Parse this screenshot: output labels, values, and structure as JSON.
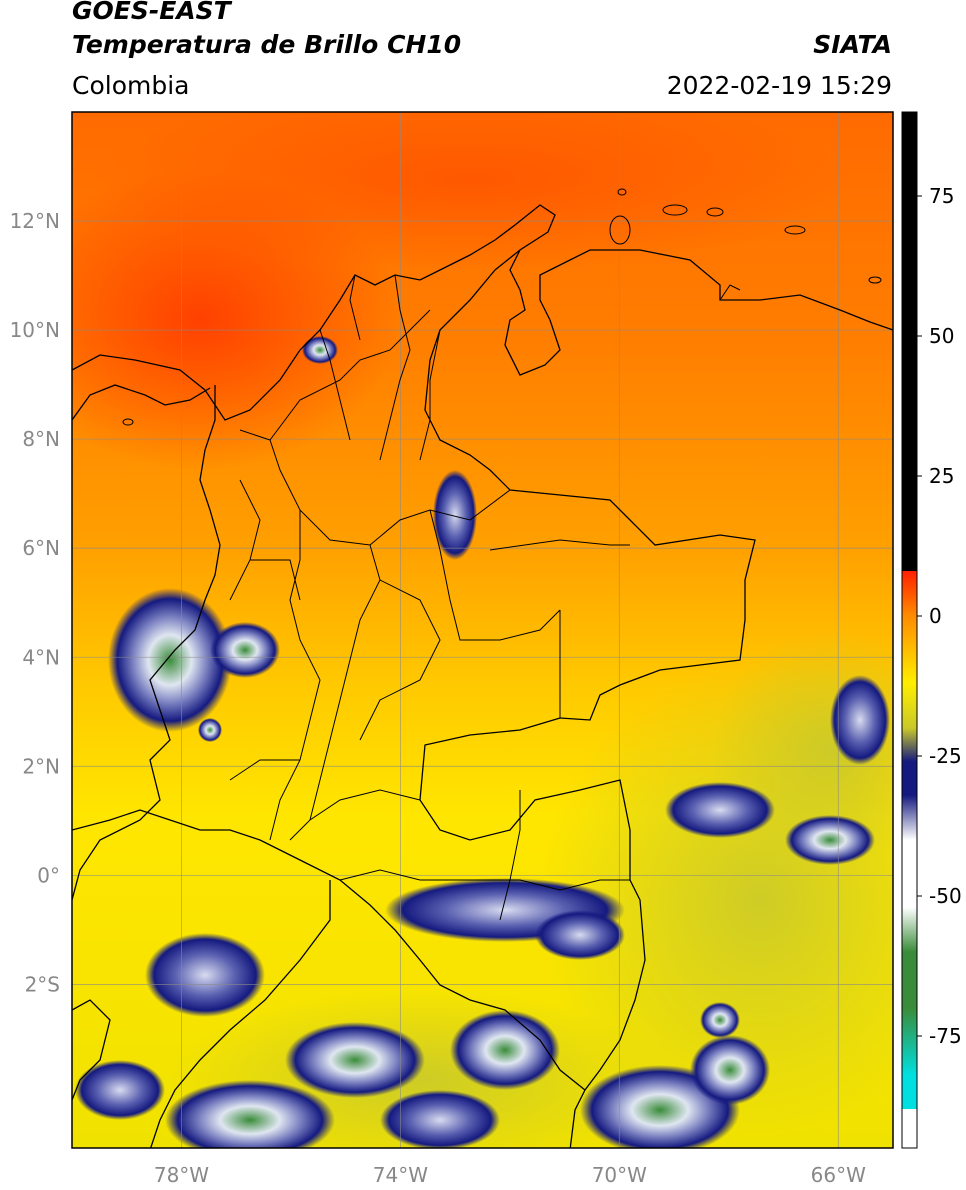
{
  "header": {
    "title_line1": "GOES-EAST",
    "title_line2": "Temperatura de Brillo CH10",
    "organization": "SIATA",
    "region": "Colombia",
    "timestamp": "2022-02-19 15:29"
  },
  "map": {
    "lon_range": [
      -80,
      -65
    ],
    "lat_range": [
      -5,
      14
    ],
    "lat_ticks": [
      {
        "value": 12,
        "label": "12°N"
      },
      {
        "value": 10,
        "label": "10°N"
      },
      {
        "value": 8,
        "label": "8°N"
      },
      {
        "value": 6,
        "label": "6°N"
      },
      {
        "value": 4,
        "label": "4°N"
      },
      {
        "value": 2,
        "label": "2°N"
      },
      {
        "value": 0,
        "label": "0°"
      },
      {
        "value": -2,
        "label": "2°S"
      }
    ],
    "lon_ticks": [
      {
        "value": -78,
        "label": "78°W"
      },
      {
        "value": -74,
        "label": "74°W"
      },
      {
        "value": -70,
        "label": "70°W"
      },
      {
        "value": -66,
        "label": "66°W"
      }
    ],
    "grid": true
  },
  "colorbar": {
    "range": [
      -95,
      90
    ],
    "ticks": [
      {
        "value": 75,
        "label": "75"
      },
      {
        "value": 50,
        "label": "50"
      },
      {
        "value": 25,
        "label": "25"
      },
      {
        "value": 0,
        "label": "0"
      },
      {
        "value": -25,
        "label": "-25"
      },
      {
        "value": -50,
        "label": "-50"
      },
      {
        "value": -75,
        "label": "-75"
      }
    ],
    "colors": {
      "hot": "#000000",
      "red": "#ff2000",
      "orange": "#ff8c00",
      "yellow": "#ffee00",
      "olive": "#c9c92a",
      "navy": "#151a80",
      "white": "#ffffff",
      "green": "#3a8c3a",
      "cyan": "#00e0e0"
    }
  }
}
